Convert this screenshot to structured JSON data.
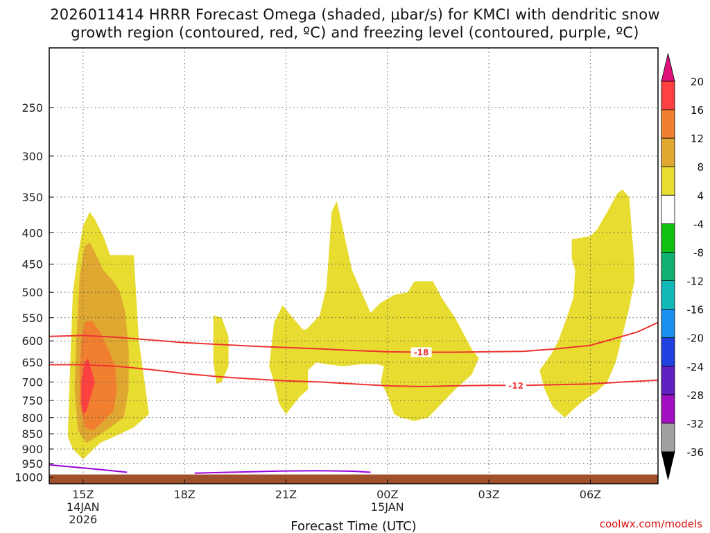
{
  "title_line1": "2026011414 HRRR Forecast Omega (shaded, μbar/s) for KMCI with dendritic snow",
  "title_line2": "growth region (contoured, red, ºC) and freezing level (contoured, purple, ºC)",
  "chart_data": {
    "type": "time-height cross section",
    "xlabel": "Forecast Time (UTC)",
    "credit": "coolwx.com/models",
    "x_ticks": [
      {
        "hour": 15,
        "lines": [
          "15Z",
          "14JAN",
          "2026"
        ]
      },
      {
        "hour": 18,
        "lines": [
          "18Z"
        ]
      },
      {
        "hour": 21,
        "lines": [
          "21Z"
        ]
      },
      {
        "hour": 24,
        "lines": [
          "00Z",
          "15JAN"
        ]
      },
      {
        "hour": 27,
        "lines": [
          "03Z"
        ]
      },
      {
        "hour": 30,
        "lines": [
          "06Z"
        ]
      }
    ],
    "xlim": [
      14,
      32
    ],
    "y_ticks": [
      250,
      300,
      350,
      400,
      450,
      500,
      550,
      600,
      650,
      700,
      750,
      800,
      850,
      900,
      950,
      1000
    ],
    "ylim": [
      200,
      1025
    ],
    "surface_pressure": 990,
    "colorbar": {
      "labels": [
        "20",
        "16",
        "12",
        "8",
        "4",
        "-4",
        "-8",
        "-12",
        "-16",
        "-20",
        "-24",
        "-28",
        "-32",
        "-36"
      ],
      "bands": [
        {
          "from": 16,
          "to": 20,
          "color": "#ff4040"
        },
        {
          "from": 12,
          "to": 16,
          "color": "#f08030"
        },
        {
          "from": 8,
          "to": 12,
          "color": "#e0a830"
        },
        {
          "from": 4,
          "to": 8,
          "color": "#e8dc30"
        },
        {
          "from": -4,
          "to": 4,
          "color": "#ffffff"
        },
        {
          "from": -8,
          "to": -4,
          "color": "#10c010"
        },
        {
          "from": -12,
          "to": -8,
          "color": "#10b070"
        },
        {
          "from": -16,
          "to": -12,
          "color": "#10b8b8"
        },
        {
          "from": -20,
          "to": -16,
          "color": "#1890f0"
        },
        {
          "from": -24,
          "to": -20,
          "color": "#2040e0"
        },
        {
          "from": -28,
          "to": -24,
          "color": "#6020c0"
        },
        {
          "from": -32,
          "to": -28,
          "color": "#a010c0"
        },
        {
          "from": -36,
          "to": -32,
          "color": "#a0a0a0"
        }
      ],
      "over_color": "#e0107a",
      "under_color": "#000000"
    },
    "omega_regions": [
      {
        "level": 4,
        "color": "#e8dc30",
        "points": [
          [
            14.55,
            860
          ],
          [
            14.6,
            700
          ],
          [
            14.7,
            500
          ],
          [
            14.85,
            435
          ],
          [
            15,
            390
          ],
          [
            15.2,
            370
          ],
          [
            15.35,
            380
          ],
          [
            15.6,
            405
          ],
          [
            15.8,
            435
          ],
          [
            16.5,
            435
          ],
          [
            16.65,
            600
          ],
          [
            16.95,
            790
          ],
          [
            16.5,
            830
          ],
          [
            16.1,
            850
          ],
          [
            15.5,
            880
          ],
          [
            15,
            935
          ],
          [
            14.7,
            900
          ]
        ]
      },
      {
        "level": 4,
        "color": "#e8dc30",
        "points": [
          [
            18.85,
            545
          ],
          [
            19.1,
            550
          ],
          [
            19.3,
            590
          ],
          [
            19.3,
            660
          ],
          [
            19.1,
            700
          ],
          [
            18.95,
            705
          ],
          [
            18.85,
            650
          ]
        ]
      },
      {
        "level": 4,
        "color": "#e8dc30",
        "points": [
          [
            20.65,
            560
          ],
          [
            20.9,
            525
          ],
          [
            21.2,
            550
          ],
          [
            21.5,
            575
          ],
          [
            21.6,
            575
          ],
          [
            21.8,
            560
          ],
          [
            22,
            545
          ],
          [
            22.2,
            490
          ],
          [
            22.35,
            370
          ],
          [
            22.5,
            355
          ],
          [
            22.55,
            365
          ],
          [
            22.95,
            460
          ],
          [
            23.2,
            495
          ],
          [
            23.5,
            540
          ],
          [
            23.8,
            520
          ],
          [
            24.2,
            505
          ],
          [
            24.6,
            500
          ],
          [
            24.8,
            480
          ],
          [
            25.35,
            480
          ],
          [
            25.6,
            510
          ],
          [
            26,
            550
          ],
          [
            26.5,
            620
          ],
          [
            26.7,
            640
          ],
          [
            26.5,
            680
          ],
          [
            26,
            720
          ],
          [
            25.2,
            800
          ],
          [
            24.8,
            810
          ],
          [
            24.4,
            800
          ],
          [
            24.2,
            790
          ],
          [
            24,
            735
          ],
          [
            23.8,
            700
          ],
          [
            23.9,
            660
          ],
          [
            23.7,
            655
          ],
          [
            23.2,
            655
          ],
          [
            22.7,
            660
          ],
          [
            22.2,
            655
          ],
          [
            21.9,
            650
          ],
          [
            21.65,
            670
          ],
          [
            21.65,
            720
          ],
          [
            21.4,
            740
          ],
          [
            21,
            790
          ],
          [
            20.8,
            760
          ],
          [
            20.65,
            700
          ],
          [
            20.5,
            660
          ]
        ]
      },
      {
        "level": 4,
        "color": "#e8dc30",
        "points": [
          [
            29.45,
            410
          ],
          [
            30,
            405
          ],
          [
            30.2,
            395
          ],
          [
            30.5,
            370
          ],
          [
            30.8,
            345
          ],
          [
            30.95,
            340
          ],
          [
            31.15,
            350
          ],
          [
            31.3,
            450
          ],
          [
            31.3,
            480
          ],
          [
            31.15,
            530
          ],
          [
            30.75,
            650
          ],
          [
            30.5,
            700
          ],
          [
            30.2,
            725
          ],
          [
            29.8,
            750
          ],
          [
            29.5,
            775
          ],
          [
            29.25,
            800
          ],
          [
            28.9,
            770
          ],
          [
            28.65,
            720
          ],
          [
            28.5,
            670
          ],
          [
            28.85,
            630
          ],
          [
            29.05,
            600
          ],
          [
            29.25,
            560
          ],
          [
            29.5,
            510
          ],
          [
            29.55,
            460
          ],
          [
            29.45,
            440
          ]
        ]
      },
      {
        "level": 8,
        "color": "#e0a830",
        "points": [
          [
            14.9,
            470
          ],
          [
            15.05,
            420
          ],
          [
            15.2,
            415
          ],
          [
            15.35,
            430
          ],
          [
            15.6,
            460
          ],
          [
            15.9,
            480
          ],
          [
            16.1,
            500
          ],
          [
            16.25,
            540
          ],
          [
            16.35,
            620
          ],
          [
            16.35,
            720
          ],
          [
            16.2,
            800
          ],
          [
            15.8,
            830
          ],
          [
            15.4,
            860
          ],
          [
            15.1,
            880
          ],
          [
            14.85,
            840
          ],
          [
            14.75,
            720
          ],
          [
            14.8,
            600
          ]
        ]
      },
      {
        "level": 12,
        "color": "#f08030",
        "points": [
          [
            14.95,
            600
          ],
          [
            15.05,
            560
          ],
          [
            15.25,
            555
          ],
          [
            15.5,
            580
          ],
          [
            15.75,
            620
          ],
          [
            15.95,
            660
          ],
          [
            16,
            720
          ],
          [
            15.9,
            780
          ],
          [
            15.6,
            810
          ],
          [
            15.3,
            840
          ],
          [
            15.05,
            830
          ],
          [
            14.9,
            760
          ],
          [
            14.9,
            670
          ]
        ]
      },
      {
        "level": 16,
        "color": "#ff4040",
        "points": [
          [
            14.95,
            700
          ],
          [
            15.05,
            650
          ],
          [
            15.15,
            640
          ],
          [
            15.35,
            700
          ],
          [
            15.1,
            780
          ],
          [
            15,
            790
          ],
          [
            14.95,
            760
          ]
        ]
      }
    ],
    "temperature_contours": [
      {
        "label": "-18",
        "color": "#ee3333",
        "label_at": 25.0,
        "points": [
          [
            14,
            590
          ],
          [
            15,
            588
          ],
          [
            16,
            592
          ],
          [
            17,
            598
          ],
          [
            18,
            604
          ],
          [
            19,
            608
          ],
          [
            20,
            612
          ],
          [
            21,
            615
          ],
          [
            22,
            618
          ],
          [
            23,
            622
          ],
          [
            24,
            625
          ],
          [
            25,
            626
          ],
          [
            26,
            626
          ],
          [
            27,
            625
          ],
          [
            28,
            624
          ],
          [
            29,
            618
          ],
          [
            30,
            610
          ],
          [
            30.7,
            595
          ],
          [
            31.4,
            580
          ],
          [
            32,
            560
          ]
        ]
      },
      {
        "label": "-12",
        "color": "#ee3333",
        "label_at": 27.8,
        "points": [
          [
            14,
            656
          ],
          [
            15,
            656
          ],
          [
            16,
            660
          ],
          [
            17,
            668
          ],
          [
            18,
            678
          ],
          [
            19,
            686
          ],
          [
            20,
            692
          ],
          [
            21,
            697
          ],
          [
            22,
            700
          ],
          [
            23,
            705
          ],
          [
            24,
            710
          ],
          [
            25,
            712
          ],
          [
            26,
            710
          ],
          [
            27,
            709
          ],
          [
            28,
            709
          ],
          [
            29,
            707
          ],
          [
            30,
            705
          ],
          [
            31,
            700
          ],
          [
            32,
            695
          ]
        ]
      }
    ],
    "freezing_level_segments": [
      [
        [
          14,
          955
        ],
        [
          15,
          966
        ],
        [
          16,
          978
        ],
        [
          16.3,
          982
        ]
      ],
      [
        [
          18.3,
          985
        ],
        [
          19,
          983
        ],
        [
          20,
          980
        ],
        [
          21,
          977
        ],
        [
          22,
          976
        ],
        [
          23,
          978
        ],
        [
          23.5,
          982
        ]
      ]
    ]
  }
}
